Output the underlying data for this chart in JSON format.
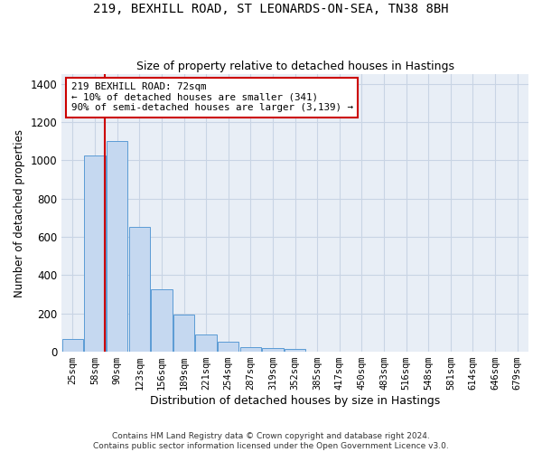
{
  "title_line1": "219, BEXHILL ROAD, ST LEONARDS-ON-SEA, TN38 8BH",
  "title_line2": "Size of property relative to detached houses in Hastings",
  "xlabel": "Distribution of detached houses by size in Hastings",
  "ylabel": "Number of detached properties",
  "categories": [
    "25sqm",
    "58sqm",
    "90sqm",
    "123sqm",
    "156sqm",
    "189sqm",
    "221sqm",
    "254sqm",
    "287sqm",
    "319sqm",
    "352sqm",
    "385sqm",
    "417sqm",
    "450sqm",
    "483sqm",
    "516sqm",
    "548sqm",
    "581sqm",
    "614sqm",
    "646sqm",
    "679sqm"
  ],
  "values": [
    65,
    1025,
    1100,
    650,
    325,
    192,
    90,
    50,
    25,
    20,
    15,
    0,
    0,
    0,
    0,
    0,
    0,
    0,
    0,
    0,
    0
  ],
  "bar_color": "#c5d8f0",
  "bar_edge_color": "#5b9bd5",
  "grid_color": "#c8d4e4",
  "background_color": "#e8eef6",
  "vline_x": 1.45,
  "vline_color": "#cc0000",
  "annotation_text": "219 BEXHILL ROAD: 72sqm\n← 10% of detached houses are smaller (341)\n90% of semi-detached houses are larger (3,139) →",
  "annotation_box_color": "#cc0000",
  "ylim": [
    0,
    1450
  ],
  "yticks": [
    0,
    200,
    400,
    600,
    800,
    1000,
    1200,
    1400
  ],
  "footer_line1": "Contains HM Land Registry data © Crown copyright and database right 2024.",
  "footer_line2": "Contains public sector information licensed under the Open Government Licence v3.0."
}
